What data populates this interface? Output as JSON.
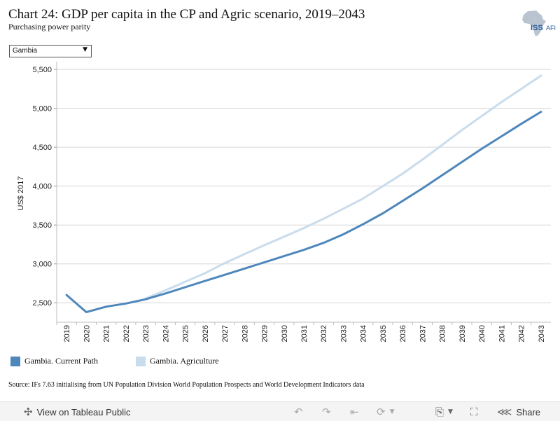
{
  "header": {
    "title": "Chart 24: GDP per capita in the CP and Agric scenario, 2019–2043",
    "subtitle": "Purchasing power parity",
    "logo_text": "ISS",
    "logo_text_2": "AFI"
  },
  "filter": {
    "selected": "Gambia"
  },
  "chart_data": {
    "type": "line",
    "ylabel": "US$ 2017",
    "ylim": [
      2250,
      5600
    ],
    "yticks": [
      2500,
      3000,
      3500,
      4000,
      4500,
      5000,
      5500
    ],
    "ytick_labels": [
      "2,500",
      "3,000",
      "3,500",
      "4,000",
      "4,500",
      "5,000",
      "5,500"
    ],
    "x": [
      "2019",
      "2020",
      "2021",
      "2022",
      "2023",
      "2024",
      "2025",
      "2026",
      "2027",
      "2028",
      "2029",
      "2030",
      "2031",
      "2032",
      "2033",
      "2034",
      "2035",
      "2036",
      "2037",
      "2038",
      "2039",
      "2040",
      "2041",
      "2042",
      "2043"
    ],
    "grid": true,
    "series": [
      {
        "name": "Gambia. Current Path",
        "color": "#4e87bb",
        "values": [
          2600,
          2380,
          2450,
          2490,
          2545,
          2620,
          2700,
          2780,
          2860,
          2940,
          3020,
          3100,
          3180,
          3270,
          3380,
          3510,
          3650,
          3810,
          3970,
          4140,
          4310,
          4480,
          4640,
          4800,
          4955
        ]
      },
      {
        "name": "Gambia. Agriculture",
        "color": "#c9dcec",
        "values": [
          null,
          null,
          null,
          null,
          2555,
          2660,
          2770,
          2880,
          3010,
          3125,
          3240,
          3350,
          3460,
          3580,
          3710,
          3840,
          4000,
          4160,
          4340,
          4530,
          4720,
          4900,
          5080,
          5250,
          5420
        ]
      }
    ]
  },
  "source": "Source: IFs 7.63 initialising from UN Population Division World Population Prospects and World Development Indicators data",
  "toolbar": {
    "view_label": "View on Tableau Public",
    "share_label": "Share"
  }
}
